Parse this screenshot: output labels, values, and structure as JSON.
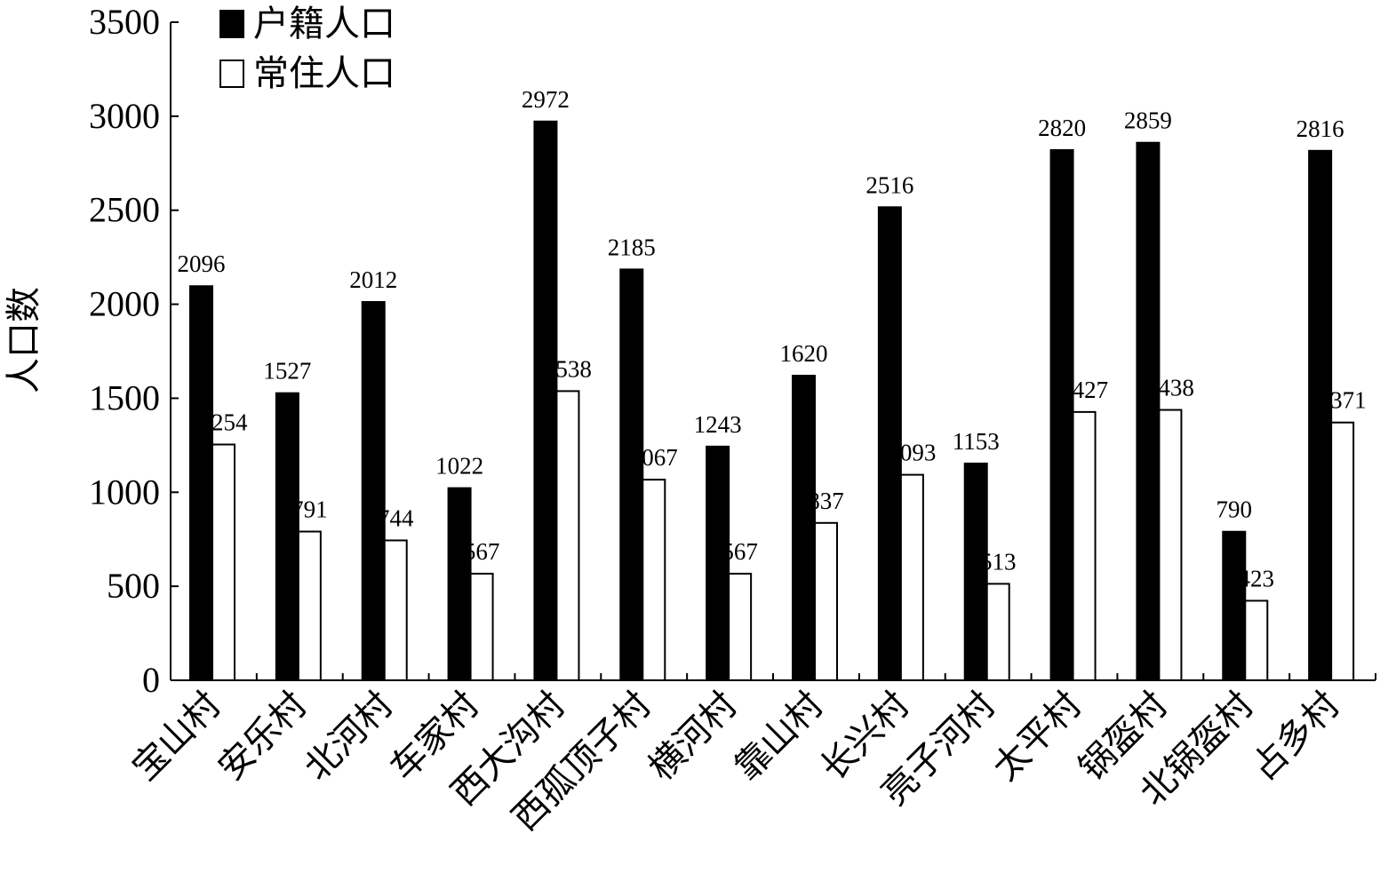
{
  "chart_data": {
    "type": "bar",
    "ylabel": "人口数",
    "xlabel": "",
    "ylim": [
      0,
      3500
    ],
    "yticks": [
      0,
      500,
      1000,
      1500,
      2000,
      2500,
      3000,
      3500
    ],
    "legend_position": "top-left",
    "categories": [
      "宝山村",
      "安乐村",
      "北河村",
      "车家村",
      "西大沟村",
      "西孤顶子村",
      "横河村",
      "靠山村",
      "长兴村",
      "亮子河村",
      "太平村",
      "锅盔村",
      "北锅盔村",
      "占多村"
    ],
    "series": [
      {
        "name": "户籍人口",
        "color": "#000000",
        "values": [
          2096,
          1527,
          2012,
          1022,
          2972,
          2185,
          1243,
          1620,
          2516,
          1153,
          2820,
          2859,
          790,
          2816
        ]
      },
      {
        "name": "常住人口",
        "color": "#ffffff",
        "values": [
          1254,
          791,
          744,
          567,
          1538,
          1067,
          567,
          837,
          1093,
          513,
          1427,
          1438,
          423,
          1371
        ]
      }
    ]
  }
}
